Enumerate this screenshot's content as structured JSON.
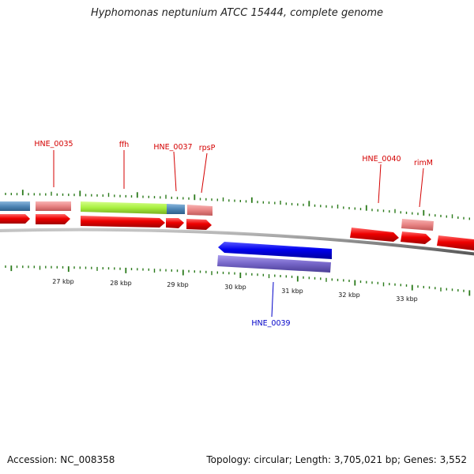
{
  "header": {
    "title": "Hyphomonas neptunium ATCC 15444, complete genome"
  },
  "footer": {
    "accession": "Accession: NC_008358",
    "summary": "Topology: circular; Length: 3,705,021 bp; Genes: 3,552"
  },
  "colors": {
    "forward_cds": "#ee0000",
    "reverse_cds": "#0000ee",
    "rna": "#a8f040",
    "cog_blue": "#4f86b6",
    "cog_pink": "#e88484",
    "cog_purple": "#7565c7",
    "tick": "#2a7a1a",
    "backbone": "#8a8a8a",
    "forward_label": "#d40000",
    "reverse_label": "#0000c8"
  },
  "gene_labels": [
    {
      "name": "HNE_0035",
      "strand": "forward"
    },
    {
      "name": "ffh",
      "strand": "forward"
    },
    {
      "name": "HNE_0037",
      "strand": "forward"
    },
    {
      "name": "rpsP",
      "strand": "forward"
    },
    {
      "name": "HNE_0040",
      "strand": "forward"
    },
    {
      "name": "rimM",
      "strand": "forward"
    },
    {
      "name": "HNE_0039",
      "strand": "reverse"
    }
  ],
  "scale_labels": [
    "27 kbp",
    "28 kbp",
    "29 kbp",
    "30 kbp",
    "31 kbp",
    "32 kbp",
    "33 kbp"
  ]
}
